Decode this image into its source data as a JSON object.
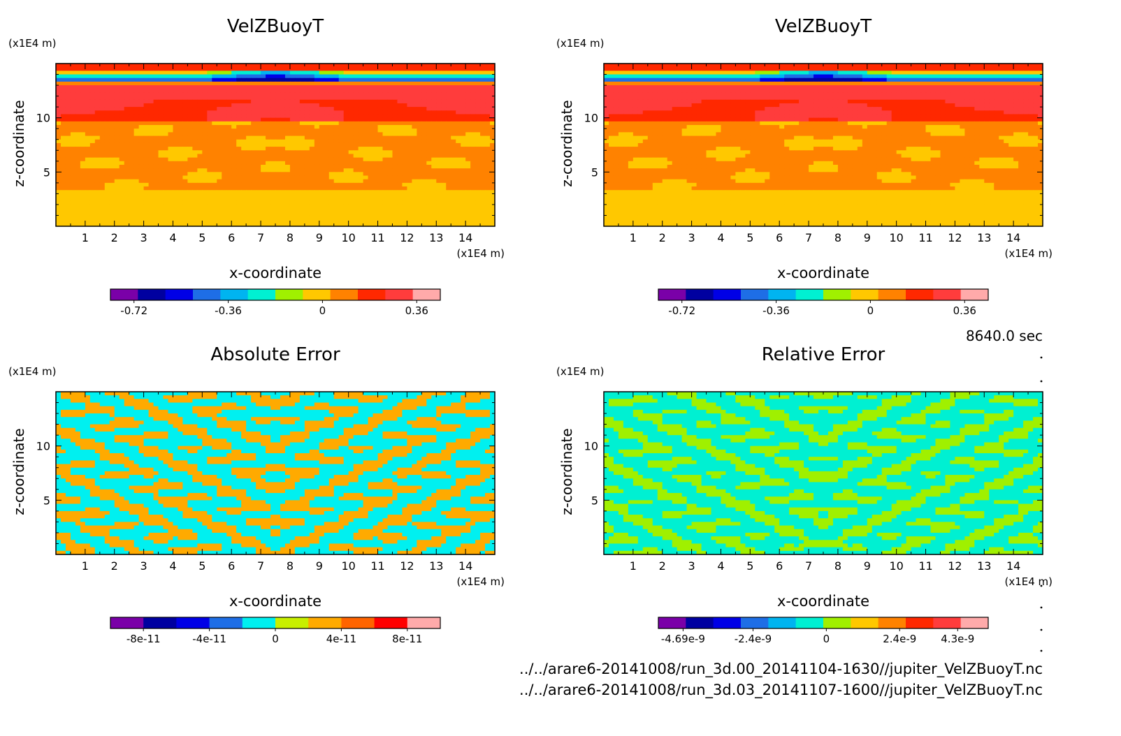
{
  "time_label": "8640.0 sec",
  "file_paths": [
    "../../arare6-20141008/run_3d.00_20141104-1630//jupiter_VelZBuoyT.nc",
    "../../arare6-20141008/run_3d.03_20141107-1600//jupiter_VelZBuoyT.nc"
  ],
  "chart_data": [
    {
      "type": "heatmap",
      "title": "VelZBuoyT",
      "xlabel": "x-coordinate",
      "ylabel": "z-coordinate",
      "x_unit": "(x1E4 m)",
      "z_unit": "(x1E4 m)",
      "xlim": [
        0,
        15
      ],
      "zlim": [
        0,
        15
      ],
      "x_ticks": [
        "1",
        "2",
        "3",
        "4",
        "5",
        "6",
        "7",
        "8",
        "9",
        "10",
        "11",
        "12",
        "13",
        "14"
      ],
      "z_ticks": [
        "5",
        "10"
      ],
      "colorbar": {
        "colors": [
          "#7a00a8",
          "#0000a0",
          "#0000e6",
          "#1e6ee6",
          "#00b4f0",
          "#00f0d2",
          "#a0f000",
          "#ffc800",
          "#ff8200",
          "#ff2800",
          "#ff3c3c",
          "#ffaaaa"
        ],
        "tick_labels": [
          "-0.72",
          "-0.36",
          "0",
          "0.36"
        ],
        "tick_values": [
          -0.72,
          -0.36,
          0,
          0.36
        ],
        "range": [
          -0.81,
          0.45
        ]
      },
      "pattern": "field"
    },
    {
      "type": "heatmap",
      "title": "VelZBuoyT",
      "xlabel": "x-coordinate",
      "ylabel": "z-coordinate",
      "x_unit": "(x1E4 m)",
      "z_unit": "(x1E4 m)",
      "xlim": [
        0,
        15
      ],
      "zlim": [
        0,
        15
      ],
      "x_ticks": [
        "1",
        "2",
        "3",
        "4",
        "5",
        "6",
        "7",
        "8",
        "9",
        "10",
        "11",
        "12",
        "13",
        "14"
      ],
      "z_ticks": [
        "5",
        "10"
      ],
      "colorbar": {
        "colors": [
          "#7a00a8",
          "#0000a0",
          "#0000e6",
          "#1e6ee6",
          "#00b4f0",
          "#00f0d2",
          "#a0f000",
          "#ffc800",
          "#ff8200",
          "#ff2800",
          "#ff3c3c",
          "#ffaaaa"
        ],
        "tick_labels": [
          "-0.72",
          "-0.36",
          "0",
          "0.36"
        ],
        "tick_values": [
          -0.72,
          -0.36,
          0,
          0.36
        ],
        "range": [
          -0.81,
          0.45
        ]
      },
      "pattern": "field"
    },
    {
      "type": "heatmap",
      "title": "Absolute Error",
      "xlabel": "x-coordinate",
      "ylabel": "z-coordinate",
      "x_unit": "(x1E4 m)",
      "z_unit": "(x1E4 m)",
      "xlim": [
        0,
        15
      ],
      "zlim": [
        0,
        15
      ],
      "x_ticks": [
        "1",
        "2",
        "3",
        "4",
        "5",
        "6",
        "7",
        "8",
        "9",
        "10",
        "11",
        "12",
        "13",
        "14"
      ],
      "z_ticks": [
        "5",
        "10"
      ],
      "colorbar": {
        "colors": [
          "#7a00a8",
          "#0000a0",
          "#0000e6",
          "#1e6ee6",
          "#00f0f0",
          "#c8f000",
          "#ffaa00",
          "#ff6400",
          "#ff0000",
          "#ffaaaa"
        ],
        "tick_labels": [
          "-8e-11",
          "-4e-11",
          "0",
          "4e-11",
          "8e-11"
        ],
        "tick_values": [
          -8e-11,
          -4e-11,
          0,
          4e-11,
          8e-11
        ],
        "range": [
          -1e-10,
          1e-10
        ]
      },
      "pattern": "abs"
    },
    {
      "type": "heatmap",
      "title": "Relative Error",
      "xlabel": "x-coordinate",
      "ylabel": "z-coordinate",
      "x_unit": "(x1E4 m)",
      "z_unit": "(x1E4 m)",
      "xlim": [
        0,
        15
      ],
      "zlim": [
        0,
        15
      ],
      "x_ticks": [
        "1",
        "2",
        "3",
        "4",
        "5",
        "6",
        "7",
        "8",
        "9",
        "10",
        "11",
        "12",
        "13",
        "14"
      ],
      "z_ticks": [
        "5",
        "10"
      ],
      "colorbar": {
        "colors": [
          "#7a00a8",
          "#0000a0",
          "#0000e6",
          "#1e6ee6",
          "#00b4f0",
          "#00f0d2",
          "#a0f000",
          "#ffc800",
          "#ff8200",
          "#ff2800",
          "#ff3c3c",
          "#ffaaaa"
        ],
        "tick_labels": [
          "-4.69e-9",
          "-2.4e-9",
          "0",
          "2.4e-9",
          "4.3e-9"
        ],
        "tick_values": [
          -4.69e-09,
          -2.4e-09,
          0,
          2.4e-09,
          4.3e-09
        ],
        "range": [
          -5.5e-09,
          5.3e-09
        ]
      },
      "pattern": "rel"
    }
  ]
}
